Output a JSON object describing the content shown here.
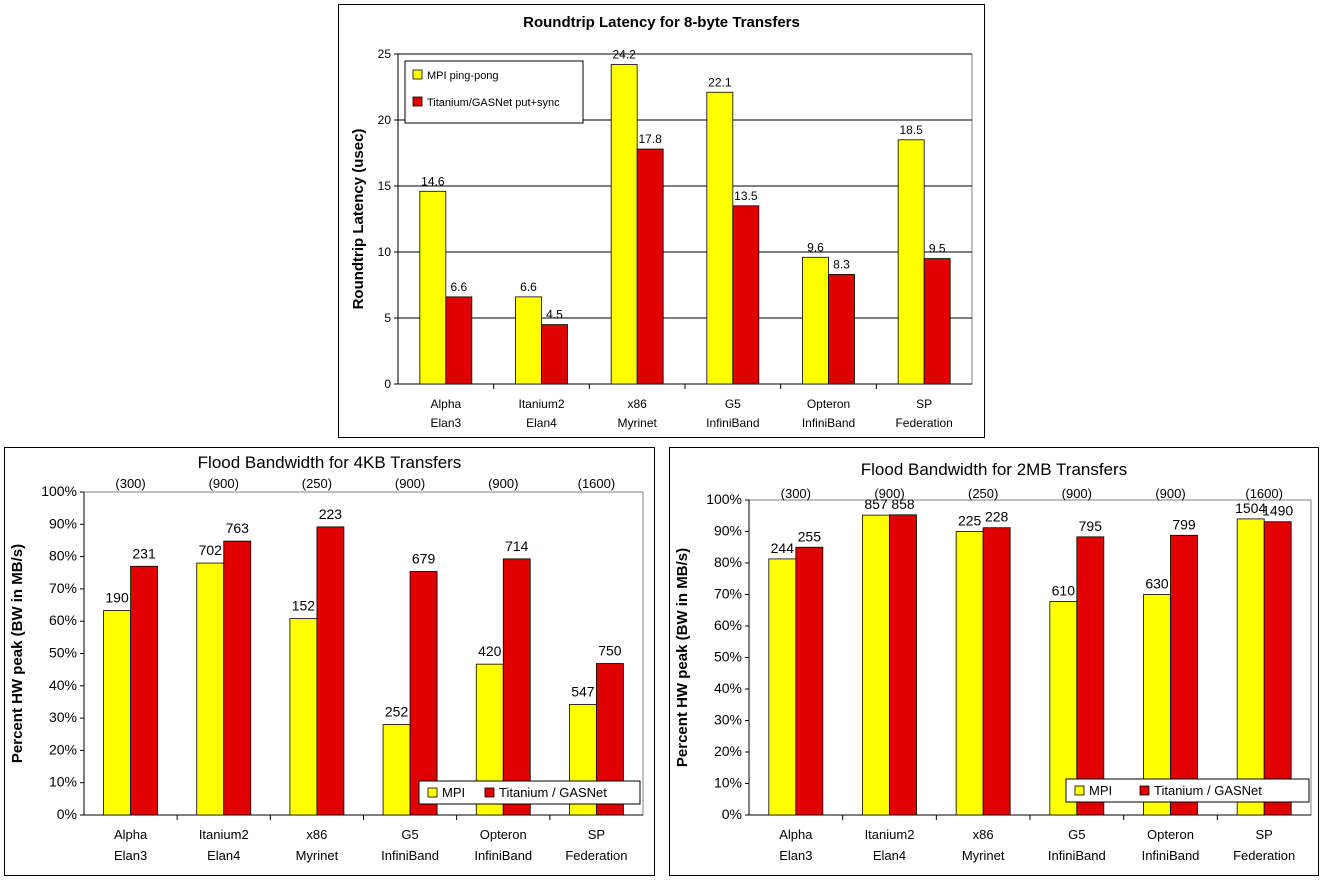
{
  "colors": {
    "mpi": "#ffff00",
    "titanium": "#e00000",
    "grid": "#000000",
    "plot_bg": "#ffffff"
  },
  "chart_data": [
    {
      "type": "bar",
      "title": "Roundtrip Latency for 8-byte Transfers",
      "ylabel": "Roundtrip Latency (usec)",
      "xlabel": "",
      "categories": [
        [
          "Alpha",
          "Elan3"
        ],
        [
          "Itanium2",
          "Elan4"
        ],
        [
          "x86",
          "Myrinet"
        ],
        [
          "G5",
          "InfiniBand"
        ],
        [
          "Opteron",
          "InfiniBand"
        ],
        [
          "SP",
          "Federation"
        ]
      ],
      "series": [
        {
          "name": "MPI ping-pong",
          "values": [
            14.6,
            6.6,
            24.2,
            22.1,
            9.6,
            18.5
          ],
          "labels": [
            "14.6",
            "6.6",
            "24.2",
            "22.1",
            "9.6",
            "18.5"
          ]
        },
        {
          "name": "Titanium/GASNet put+sync",
          "values": [
            6.6,
            4.5,
            17.8,
            13.5,
            8.3,
            9.5
          ],
          "labels": [
            "6.6",
            "4.5",
            "17.8",
            "13.5",
            "8.3",
            "9.5"
          ]
        }
      ],
      "ylim": [
        0,
        25
      ],
      "yticks": [
        0,
        5,
        10,
        15,
        20,
        25
      ],
      "ytick_labels": [
        "0",
        "5",
        "10",
        "15",
        "20",
        "25"
      ],
      "grid": true,
      "legend_position": "top-left"
    },
    {
      "type": "bar",
      "title": "Flood Bandwidth for 4KB Transfers",
      "ylabel": "Percent HW peak (BW in MB/s)",
      "xlabel": "",
      "categories": [
        [
          "Alpha",
          "Elan3"
        ],
        [
          "Itanium2",
          "Elan4"
        ],
        [
          "x86",
          "Myrinet"
        ],
        [
          "G5",
          "InfiniBand"
        ],
        [
          "Opteron",
          "InfiniBand"
        ],
        [
          "SP",
          "Federation"
        ]
      ],
      "peak_labels": [
        "(300)",
        "(900)",
        "(250)",
        "(900)",
        "(900)",
        "(1600)"
      ],
      "series": [
        {
          "name": "MPI",
          "values": [
            63.3,
            78.0,
            60.8,
            28.0,
            46.7,
            34.2
          ],
          "labels": [
            "190",
            "702",
            "152",
            "252",
            "420",
            "547"
          ]
        },
        {
          "name": "Titanium / GASNet",
          "values": [
            77.0,
            84.8,
            89.2,
            75.4,
            79.3,
            46.9
          ],
          "labels": [
            "231",
            "763",
            "223",
            "679",
            "714",
            "750"
          ]
        }
      ],
      "ylim": [
        0,
        100
      ],
      "yticks": [
        0,
        10,
        20,
        30,
        40,
        50,
        60,
        70,
        80,
        90,
        100
      ],
      "ytick_labels": [
        "0%",
        "10%",
        "20%",
        "30%",
        "40%",
        "50%",
        "60%",
        "70%",
        "80%",
        "90%",
        "100%"
      ],
      "grid": false,
      "legend_position": "bottom-right"
    },
    {
      "type": "bar",
      "title": "Flood Bandwidth for 2MB Transfers",
      "ylabel": "Percent HW peak (BW in MB/s)",
      "xlabel": "",
      "categories": [
        [
          "Alpha",
          "Elan3"
        ],
        [
          "Itanium2",
          "Elan4"
        ],
        [
          "x86",
          "Myrinet"
        ],
        [
          "G5",
          "InfiniBand"
        ],
        [
          "Opteron",
          "InfiniBand"
        ],
        [
          "SP",
          "Federation"
        ]
      ],
      "peak_labels": [
        "(300)",
        "(900)",
        "(250)",
        "(900)",
        "(900)",
        "(1600)"
      ],
      "series": [
        {
          "name": "MPI",
          "values": [
            81.3,
            95.2,
            90.0,
            67.8,
            70.0,
            94.0
          ],
          "labels": [
            "244",
            "857",
            "225",
            "610",
            "630",
            "1504"
          ]
        },
        {
          "name": "Titanium / GASNet",
          "values": [
            85.0,
            95.3,
            91.2,
            88.3,
            88.8,
            93.1
          ],
          "labels": [
            "255",
            "858",
            "228",
            "795",
            "799",
            "1490"
          ]
        }
      ],
      "ylim": [
        0,
        100
      ],
      "yticks": [
        0,
        10,
        20,
        30,
        40,
        50,
        60,
        70,
        80,
        90,
        100
      ],
      "ytick_labels": [
        "0%",
        "10%",
        "20%",
        "30%",
        "40%",
        "50%",
        "60%",
        "70%",
        "80%",
        "90%",
        "100%"
      ],
      "grid": false,
      "legend_position": "bottom-right"
    }
  ]
}
